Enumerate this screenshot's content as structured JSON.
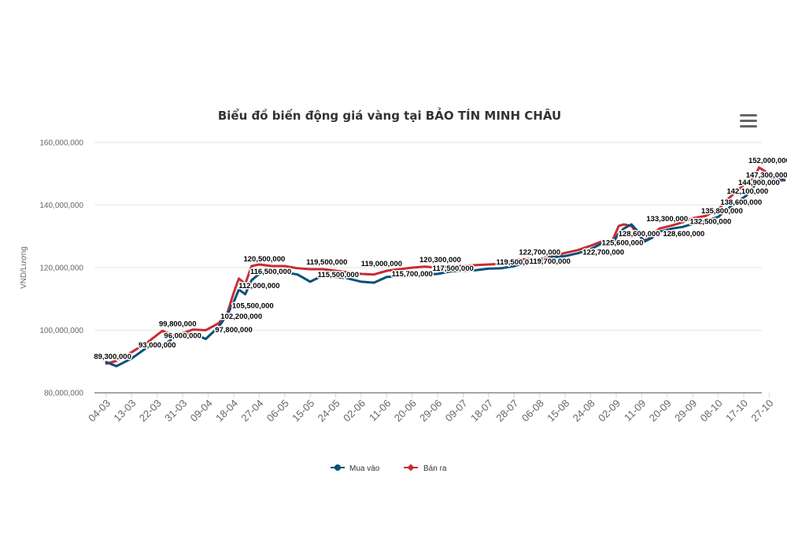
{
  "chart_data": {
    "type": "line",
    "title": "Biểu đồ biến động giá vàng tại BẢO TÍN MINH CHÂU",
    "ylabel": "VND/Lượng",
    "ylim": [
      80000000,
      160000000
    ],
    "yticks": [
      80000000,
      100000000,
      120000000,
      140000000,
      160000000
    ],
    "ytick_labels": [
      "80,000,000",
      "100,000,000",
      "120,000,000",
      "140,000,000",
      "160,000,000"
    ],
    "xtick_labels": [
      "04-03",
      "13-03",
      "22-03",
      "31-03",
      "09-04",
      "18-04",
      "27-04",
      "06-05",
      "15-05",
      "24-05",
      "02-06",
      "11-06",
      "20-06",
      "29-06",
      "09-07",
      "18-07",
      "28-07",
      "06-08",
      "15-08",
      "24-08",
      "02-09",
      "11-09",
      "20-09",
      "29-09",
      "08-10",
      "17-10",
      "27-10"
    ],
    "series": [
      {
        "name": "Mua vào",
        "color": "#0b4f7a",
        "x": [
          0,
          0.4,
          1.0,
          1.6,
          2.2,
          2.7,
          3.4,
          3.9,
          4.4,
          4.75,
          5.0,
          5.2,
          5.45,
          5.7,
          6.0,
          6.5,
          7.0,
          7.5,
          8.0,
          8.5,
          9.0,
          9.5,
          10.0,
          10.5,
          11.0,
          11.5,
          12.0,
          12.5,
          13.0,
          13.5,
          14.0,
          14.5,
          15.0,
          15.5,
          16.0,
          16.5,
          17.0,
          17.5,
          18.0,
          18.5,
          19.0,
          19.5,
          19.85,
          20.1,
          20.3,
          20.6,
          20.8,
          21.1,
          21.4,
          21.7,
          22.2,
          22.6,
          23.0,
          23.5,
          24.0,
          24.4,
          24.8,
          25.1,
          25.4,
          25.6,
          25.9,
          26.3,
          26.6
        ],
        "y": [
          89800000,
          88500000,
          91000000,
          94500000,
          95000000,
          97800000,
          99000000,
          97200000,
          101000000,
          105000000,
          109000000,
          113000000,
          111500000,
          116000000,
          118000000,
          118500000,
          118500000,
          117800000,
          115500000,
          117500000,
          117000000,
          116500000,
          115500000,
          115200000,
          117000000,
          117300000,
          117500000,
          117800000,
          118000000,
          118800000,
          119000000,
          119200000,
          119700000,
          119800000,
          120500000,
          121700000,
          122400000,
          123300000,
          123700000,
          124600000,
          125900000,
          128000000,
          127600000,
          131000000,
          132500000,
          133800000,
          132000000,
          128300000,
          129500000,
          131500000,
          132500000,
          133000000,
          134000000,
          135000000,
          136200000,
          139000000,
          141300000,
          143000000,
          146000000,
          148000000,
          149500000,
          147800000,
          148000000
        ]
      },
      {
        "name": "Bán ra",
        "color": "#c72c35",
        "x": [
          0,
          0.4,
          1.0,
          1.6,
          2.2,
          2.7,
          3.4,
          3.9,
          4.4,
          4.75,
          5.0,
          5.2,
          5.45,
          5.7,
          6.0,
          6.5,
          7.0,
          7.5,
          8.0,
          8.5,
          9.0,
          9.5,
          10.0,
          10.5,
          11.0,
          11.5,
          12.0,
          12.5,
          13.0,
          13.5,
          14.0,
          14.5,
          15.0,
          15.5,
          16.0,
          16.5,
          17.0,
          17.5,
          18.0,
          18.5,
          19.0,
          19.5,
          19.85,
          20.1,
          20.3,
          20.6,
          20.8,
          21.1,
          21.4,
          21.7,
          22.2,
          22.6,
          23.0,
          23.5,
          24.0,
          24.4,
          24.8,
          25.1,
          25.4,
          25.6,
          25.9,
          26.3,
          26.6
        ],
        "y": [
          89300000,
          90200000,
          93000000,
          96000000,
          99800000,
          98200000,
          100200000,
          100000000,
          102200000,
          105500000,
          112000000,
          116500000,
          114800000,
          120500000,
          121000000,
          120500000,
          120500000,
          119800000,
          119500000,
          119500000,
          119000000,
          118500000,
          118000000,
          117800000,
          119000000,
          119500000,
          120000000,
          120300000,
          120000000,
          120500000,
          120500000,
          120800000,
          121000000,
          121200000,
          122500000,
          122700000,
          122700000,
          123700000,
          124700000,
          125600000,
          127000000,
          128600000,
          128600000,
          133300000,
          133800000,
          133300000,
          131000000,
          128600000,
          130500000,
          132500000,
          133500000,
          134500000,
          135800000,
          136500000,
          138600000,
          142100000,
          144900000,
          147300000,
          148500000,
          152000000,
          150500000,
          149000000,
          147900000
        ]
      }
    ],
    "data_labels": [
      {
        "text": "89,300,000",
        "x": 0.25,
        "y": 89300000
      },
      {
        "text": "93,000,000",
        "x": 2.0,
        "y": 93000000
      },
      {
        "text": "99,800,000",
        "x": 2.8,
        "y": 99800000
      },
      {
        "text": "96,000,000",
        "x": 3.0,
        "y": 96000000
      },
      {
        "text": "97,800,000",
        "x": 5.0,
        "y": 97800000
      },
      {
        "text": "102,200,000",
        "x": 5.3,
        "y": 102200000
      },
      {
        "text": "105,500,000",
        "x": 5.75,
        "y": 105500000
      },
      {
        "text": "112,000,000",
        "x": 6.0,
        "y": 112000000
      },
      {
        "text": "116,500,000",
        "x": 6.45,
        "y": 116500000
      },
      {
        "text": "120,500,000",
        "x": 6.2,
        "y": 120500000
      },
      {
        "text": "119,500,000",
        "x": 8.65,
        "y": 119500000
      },
      {
        "text": "115,500,000",
        "x": 9.1,
        "y": 115500000
      },
      {
        "text": "119,000,000",
        "x": 10.8,
        "y": 119000000
      },
      {
        "text": "115,700,000",
        "x": 12.0,
        "y": 115700000
      },
      {
        "text": "120,300,000",
        "x": 13.1,
        "y": 120300000
      },
      {
        "text": "117,500,000",
        "x": 13.6,
        "y": 117500000
      },
      {
        "text": "119,500,000",
        "x": 16.1,
        "y": 119500000
      },
      {
        "text": "122,700,000",
        "x": 17.0,
        "y": 122700000
      },
      {
        "text": "119,700,000",
        "x": 17.4,
        "y": 119700000
      },
      {
        "text": "122,700,000",
        "x": 19.5,
        "y": 122700000
      },
      {
        "text": "125,600,000",
        "x": 20.25,
        "y": 125600000
      },
      {
        "text": "128,600,000",
        "x": 20.9,
        "y": 128600000
      },
      {
        "text": "133,300,000",
        "x": 22.0,
        "y": 133300000
      },
      {
        "text": "128,600,000",
        "x": 22.65,
        "y": 128600000
      },
      {
        "text": "132,500,000",
        "x": 23.7,
        "y": 132500000
      },
      {
        "text": "135,800,000",
        "x": 24.15,
        "y": 135800000
      },
      {
        "text": "138,600,000",
        "x": 24.9,
        "y": 138600000
      },
      {
        "text": "142,100,000",
        "x": 25.15,
        "y": 142100000
      },
      {
        "text": "144,900,000",
        "x": 25.6,
        "y": 144900000
      },
      {
        "text": "147,300,000",
        "x": 25.9,
        "y": 147300000
      },
      {
        "text": "152,000,000",
        "x": 26.0,
        "y": 152000000
      }
    ],
    "legend_position": "bottom-center",
    "grid": true
  },
  "menu_icon": "hamburger-menu-icon"
}
